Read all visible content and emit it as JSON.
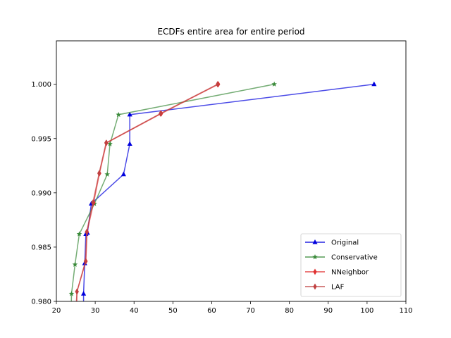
{
  "chart_data": {
    "type": "line",
    "title": "ECDFs entire area for entire period",
    "xlabel": "",
    "ylabel": "",
    "xlim": [
      20,
      110
    ],
    "ylim": [
      0.98,
      1.004
    ],
    "xticks": [
      20,
      30,
      40,
      50,
      60,
      70,
      80,
      90,
      100,
      110
    ],
    "yticks": [
      0.98,
      0.985,
      0.99,
      0.995,
      1.0
    ],
    "ytick_labels": [
      "0.980",
      "0.985",
      "0.990",
      "0.995",
      "1.000"
    ],
    "grid": false,
    "legend_position": "lower-right",
    "series": [
      {
        "name": "Original",
        "color": "#0000dd",
        "marker": "triangle",
        "x": [
          27.0,
          27.0,
          27.3,
          27.6,
          28.0,
          29.0,
          37.3,
          38.9,
          38.9,
          101.8
        ],
        "y": [
          0.979,
          0.9807,
          0.9835,
          0.9862,
          0.9863,
          0.989,
          0.9917,
          0.9945,
          0.9972,
          1.0
        ]
      },
      {
        "name": "Conservative",
        "color": "#3a8a3a",
        "marker": "star",
        "x": [
          23.8,
          23.9,
          24.8,
          25.9,
          29.8,
          33.1,
          33.8,
          36.0,
          76.1
        ],
        "y": [
          0.979,
          0.9807,
          0.9834,
          0.9862,
          0.989,
          0.9917,
          0.9945,
          0.9972,
          1.0
        ]
      },
      {
        "name": "NNeighbor",
        "color": "#e03030",
        "marker": "diamond",
        "x": [
          25.2,
          25.3,
          27.6,
          27.9,
          29.6,
          31.1,
          32.9,
          47.0,
          61.7
        ],
        "y": [
          0.979,
          0.9809,
          0.9837,
          0.9864,
          0.9891,
          0.9918,
          0.9946,
          0.9973,
          1.0
        ]
      },
      {
        "name": "LAF",
        "color": "#c04040",
        "marker": "diamond",
        "x": [
          25.0,
          25.3,
          27.5,
          27.8,
          29.4,
          31.0,
          32.8,
          46.8,
          61.5
        ],
        "y": [
          0.979,
          0.9809,
          0.9837,
          0.9864,
          0.9891,
          0.9918,
          0.9946,
          0.9973,
          1.0
        ]
      }
    ]
  }
}
